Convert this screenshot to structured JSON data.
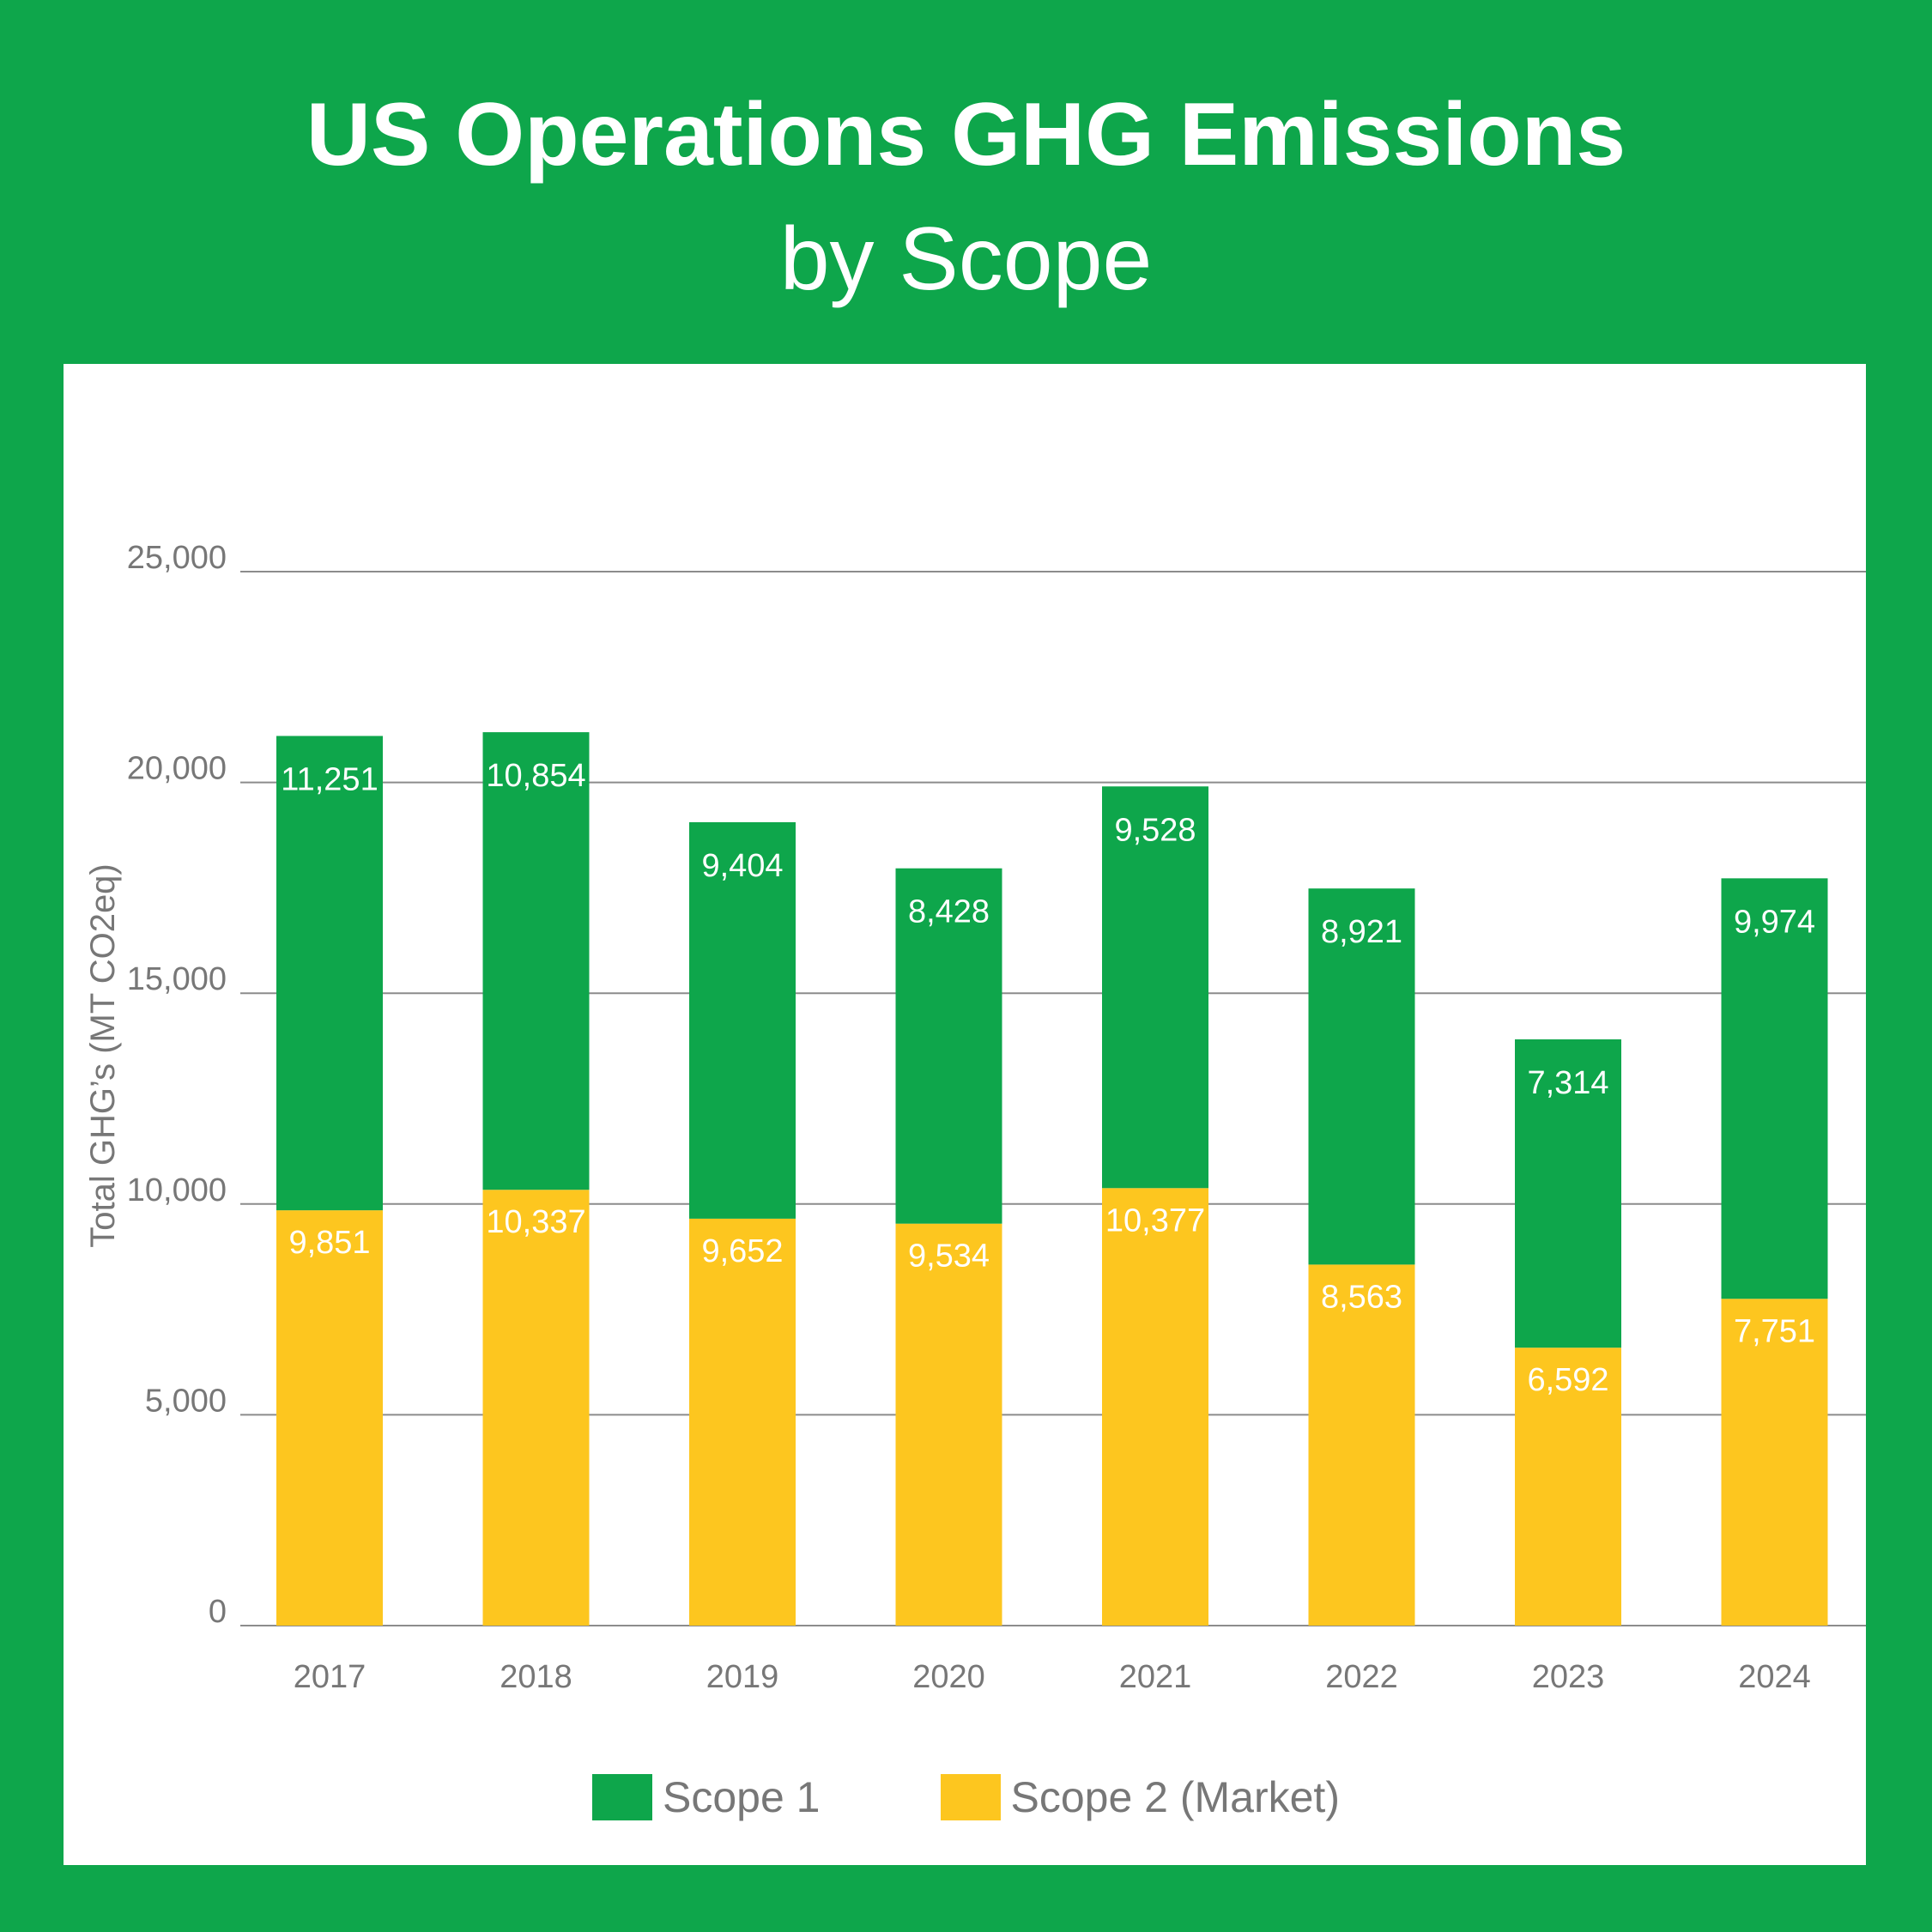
{
  "chart_data": {
    "type": "bar",
    "stacked": true,
    "title": "US Operations GHG Emissions",
    "subtitle": "by Scope",
    "xlabel": "",
    "ylabel": "Total GHG’s (MT CO2eq)",
    "ylim": [
      0,
      25000
    ],
    "yticks": [
      0,
      5000,
      10000,
      15000,
      20000,
      25000
    ],
    "ytick_labels": [
      "0",
      "5,000",
      "10,000",
      "15,000",
      "20,000",
      "25,000"
    ],
    "categories": [
      "2017",
      "2018",
      "2019",
      "2020",
      "2021",
      "2022",
      "2023",
      "2024"
    ],
    "series": [
      {
        "name": "Scope 2 (Market)",
        "color": "#fdc61f",
        "values": [
          9851,
          10337,
          9652,
          9534,
          10377,
          8563,
          6592,
          7751
        ],
        "labels": [
          "9,851",
          "10,337",
          "9,652",
          "9,534",
          "10,377",
          "8,563",
          "6,592",
          "7,751"
        ]
      },
      {
        "name": "Scope 1",
        "color": "#0ea64b",
        "values": [
          11251,
          10854,
          9404,
          8428,
          9528,
          8921,
          7314,
          9974
        ],
        "labels": [
          "11,251",
          "10,854",
          "9,404",
          "8,428",
          "9,528",
          "8,921",
          "7,314",
          "9,974"
        ]
      }
    ],
    "grid": true,
    "legend_position": "bottom"
  },
  "colors": {
    "background": "#0ea64b",
    "panel": "#ffffff",
    "grid": "#8c8c8c",
    "axis_text": "#777777",
    "bar_label": "#ffffff"
  }
}
